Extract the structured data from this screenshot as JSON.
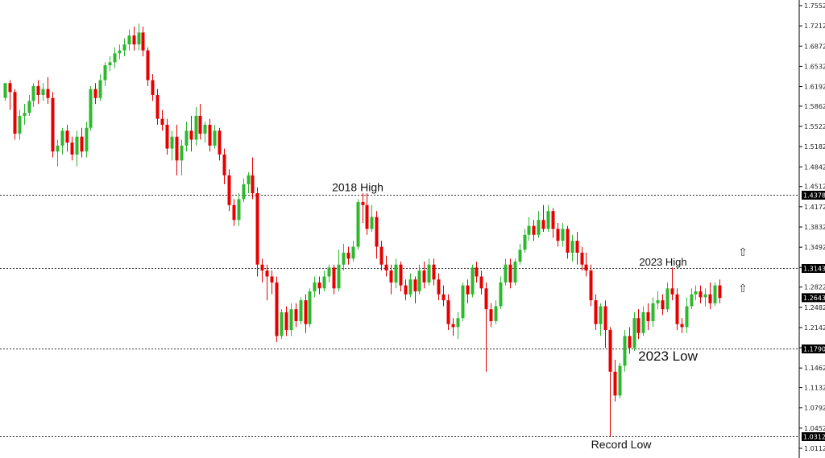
{
  "chart_data": {
    "type": "candlestick",
    "ylim": [
      1.0,
      1.76
    ],
    "y_ticks": [
      "1.75520",
      "1.72120",
      "1.68720",
      "1.65320",
      "1.61920",
      "1.58620",
      "1.55220",
      "1.51820",
      "1.48420",
      "1.45120",
      "1.41720",
      "1.38320",
      "1.34920",
      "1.31520",
      "1.28220",
      "1.24820",
      "1.21420",
      "1.18020",
      "1.14620",
      "1.11320",
      "1.07920",
      "1.04520",
      "1.01120"
    ],
    "levels": [
      {
        "label": "1.43781",
        "value": 1.43781
      },
      {
        "label": "1.31435",
        "value": 1.31435
      },
      {
        "label": "1.17901",
        "value": 1.17901
      },
      {
        "label": "1.03126",
        "value": 1.03126
      }
    ],
    "current_price": {
      "label": "1.26438",
      "value": 1.26438
    },
    "annotations": [
      {
        "text": "2018 High",
        "value": 1.43781
      },
      {
        "text": "2023 High",
        "value": 1.31435
      },
      {
        "text": "2023 Low",
        "value": 1.17901
      },
      {
        "text": "Record Low",
        "value": 1.03126
      }
    ],
    "arrows": [
      "⇧",
      "⇧"
    ],
    "colors": {
      "up": "#2eb82e",
      "down": "#e60000",
      "level_box": "#000000",
      "dotted": "#333333"
    },
    "candles": [
      [
        1.6,
        1.625,
        1.625,
        1.595
      ],
      [
        1.625,
        1.61,
        1.63,
        1.58
      ],
      [
        1.61,
        1.54,
        1.615,
        1.53
      ],
      [
        1.54,
        1.57,
        1.58,
        1.53
      ],
      [
        1.57,
        1.575,
        1.59,
        1.555
      ],
      [
        1.575,
        1.595,
        1.605,
        1.57
      ],
      [
        1.595,
        1.62,
        1.625,
        1.585
      ],
      [
        1.62,
        1.605,
        1.63,
        1.59
      ],
      [
        1.605,
        1.615,
        1.625,
        1.595
      ],
      [
        1.615,
        1.6,
        1.635,
        1.59
      ],
      [
        1.6,
        1.51,
        1.61,
        1.5
      ],
      [
        1.51,
        1.52,
        1.53,
        1.485
      ],
      [
        1.52,
        1.545,
        1.55,
        1.505
      ],
      [
        1.545,
        1.525,
        1.555,
        1.51
      ],
      [
        1.525,
        1.505,
        1.535,
        1.495
      ],
      [
        1.505,
        1.535,
        1.545,
        1.485
      ],
      [
        1.535,
        1.51,
        1.55,
        1.5
      ],
      [
        1.51,
        1.55,
        1.56,
        1.5
      ],
      [
        1.55,
        1.615,
        1.62,
        1.545
      ],
      [
        1.615,
        1.6,
        1.625,
        1.59
      ],
      [
        1.6,
        1.63,
        1.64,
        1.595
      ],
      [
        1.63,
        1.655,
        1.66,
        1.62
      ],
      [
        1.655,
        1.66,
        1.67,
        1.645
      ],
      [
        1.66,
        1.675,
        1.685,
        1.65
      ],
      [
        1.675,
        1.68,
        1.69,
        1.665
      ],
      [
        1.68,
        1.69,
        1.7,
        1.67
      ],
      [
        1.69,
        1.705,
        1.715,
        1.68
      ],
      [
        1.705,
        1.69,
        1.72,
        1.68
      ],
      [
        1.69,
        1.71,
        1.725,
        1.68
      ],
      [
        1.71,
        1.68,
        1.72,
        1.67
      ],
      [
        1.68,
        1.63,
        1.685,
        1.62
      ],
      [
        1.63,
        1.605,
        1.64,
        1.595
      ],
      [
        1.605,
        1.565,
        1.615,
        1.555
      ],
      [
        1.565,
        1.555,
        1.58,
        1.545
      ],
      [
        1.555,
        1.515,
        1.565,
        1.505
      ],
      [
        1.515,
        1.535,
        1.545,
        1.495
      ],
      [
        1.535,
        1.495,
        1.555,
        1.47
      ],
      [
        1.495,
        1.52,
        1.53,
        1.47
      ],
      [
        1.52,
        1.545,
        1.56,
        1.51
      ],
      [
        1.545,
        1.53,
        1.57,
        1.51
      ],
      [
        1.53,
        1.57,
        1.585,
        1.52
      ],
      [
        1.57,
        1.54,
        1.59,
        1.53
      ],
      [
        1.54,
        1.555,
        1.56,
        1.525
      ],
      [
        1.555,
        1.52,
        1.565,
        1.51
      ],
      [
        1.52,
        1.545,
        1.555,
        1.515
      ],
      [
        1.545,
        1.505,
        1.55,
        1.495
      ],
      [
        1.505,
        1.47,
        1.515,
        1.455
      ],
      [
        1.47,
        1.42,
        1.48,
        1.41
      ],
      [
        1.42,
        1.395,
        1.43,
        1.385
      ],
      [
        1.395,
        1.43,
        1.44,
        1.385
      ],
      [
        1.43,
        1.455,
        1.465,
        1.425
      ],
      [
        1.455,
        1.47,
        1.475,
        1.44
      ],
      [
        1.47,
        1.44,
        1.5,
        1.43
      ],
      [
        1.44,
        1.32,
        1.45,
        1.3
      ],
      [
        1.32,
        1.31,
        1.33,
        1.29
      ],
      [
        1.31,
        1.3,
        1.32,
        1.26
      ],
      [
        1.3,
        1.29,
        1.31,
        1.27
      ],
      [
        1.29,
        1.2,
        1.3,
        1.19
      ],
      [
        1.2,
        1.24,
        1.245,
        1.195
      ],
      [
        1.24,
        1.21,
        1.25,
        1.2
      ],
      [
        1.21,
        1.245,
        1.255,
        1.2
      ],
      [
        1.245,
        1.225,
        1.255,
        1.215
      ],
      [
        1.225,
        1.26,
        1.265,
        1.22
      ],
      [
        1.26,
        1.22,
        1.27,
        1.205
      ],
      [
        1.22,
        1.275,
        1.28,
        1.215
      ],
      [
        1.275,
        1.29,
        1.3,
        1.265
      ],
      [
        1.29,
        1.28,
        1.3,
        1.27
      ],
      [
        1.28,
        1.3,
        1.31,
        1.275
      ],
      [
        1.3,
        1.315,
        1.32,
        1.29
      ],
      [
        1.315,
        1.28,
        1.32,
        1.27
      ],
      [
        1.28,
        1.32,
        1.345,
        1.275
      ],
      [
        1.32,
        1.34,
        1.355,
        1.31
      ],
      [
        1.34,
        1.33,
        1.35,
        1.32
      ],
      [
        1.33,
        1.35,
        1.36,
        1.325
      ],
      [
        1.35,
        1.425,
        1.43,
        1.345
      ],
      [
        1.425,
        1.42,
        1.44,
        1.39
      ],
      [
        1.42,
        1.38,
        1.44,
        1.37
      ],
      [
        1.38,
        1.4,
        1.42,
        1.375
      ],
      [
        1.4,
        1.35,
        1.41,
        1.33
      ],
      [
        1.35,
        1.32,
        1.36,
        1.31
      ],
      [
        1.32,
        1.31,
        1.335,
        1.3
      ],
      [
        1.31,
        1.29,
        1.32,
        1.27
      ],
      [
        1.29,
        1.32,
        1.33,
        1.28
      ],
      [
        1.32,
        1.285,
        1.325,
        1.275
      ],
      [
        1.285,
        1.27,
        1.295,
        1.26
      ],
      [
        1.27,
        1.295,
        1.305,
        1.265
      ],
      [
        1.295,
        1.275,
        1.3,
        1.255
      ],
      [
        1.275,
        1.31,
        1.32,
        1.27
      ],
      [
        1.31,
        1.29,
        1.325,
        1.28
      ],
      [
        1.29,
        1.32,
        1.33,
        1.285
      ],
      [
        1.32,
        1.295,
        1.33,
        1.285
      ],
      [
        1.295,
        1.27,
        1.305,
        1.26
      ],
      [
        1.27,
        1.26,
        1.285,
        1.25
      ],
      [
        1.26,
        1.22,
        1.27,
        1.21
      ],
      [
        1.22,
        1.215,
        1.23,
        1.2
      ],
      [
        1.215,
        1.23,
        1.24,
        1.195
      ],
      [
        1.23,
        1.285,
        1.29,
        1.225
      ],
      [
        1.285,
        1.27,
        1.295,
        1.255
      ],
      [
        1.27,
        1.315,
        1.32,
        1.265
      ],
      [
        1.315,
        1.3,
        1.325,
        1.29
      ],
      [
        1.3,
        1.28,
        1.31,
        1.27
      ],
      [
        1.28,
        1.245,
        1.29,
        1.14
      ],
      [
        1.245,
        1.225,
        1.255,
        1.215
      ],
      [
        1.225,
        1.25,
        1.26,
        1.22
      ],
      [
        1.25,
        1.29,
        1.3,
        1.245
      ],
      [
        1.29,
        1.32,
        1.33,
        1.285
      ],
      [
        1.32,
        1.29,
        1.33,
        1.28
      ],
      [
        1.29,
        1.325,
        1.33,
        1.285
      ],
      [
        1.325,
        1.345,
        1.355,
        1.32
      ],
      [
        1.345,
        1.37,
        1.38,
        1.34
      ],
      [
        1.37,
        1.385,
        1.4,
        1.36
      ],
      [
        1.385,
        1.37,
        1.395,
        1.36
      ],
      [
        1.37,
        1.395,
        1.41,
        1.365
      ],
      [
        1.395,
        1.38,
        1.42,
        1.375
      ],
      [
        1.38,
        1.41,
        1.42,
        1.375
      ],
      [
        1.41,
        1.38,
        1.415,
        1.365
      ],
      [
        1.38,
        1.36,
        1.39,
        1.35
      ],
      [
        1.36,
        1.38,
        1.39,
        1.35
      ],
      [
        1.38,
        1.34,
        1.385,
        1.33
      ],
      [
        1.34,
        1.36,
        1.37,
        1.325
      ],
      [
        1.36,
        1.34,
        1.375,
        1.32
      ],
      [
        1.34,
        1.32,
        1.35,
        1.31
      ],
      [
        1.32,
        1.31,
        1.34,
        1.3
      ],
      [
        1.31,
        1.26,
        1.32,
        1.25
      ],
      [
        1.26,
        1.22,
        1.27,
        1.21
      ],
      [
        1.22,
        1.25,
        1.255,
        1.2
      ],
      [
        1.25,
        1.21,
        1.26,
        1.18
      ],
      [
        1.21,
        1.14,
        1.215,
        1.031
      ],
      [
        1.14,
        1.1,
        1.16,
        1.09
      ],
      [
        1.1,
        1.15,
        1.155,
        1.095
      ],
      [
        1.15,
        1.2,
        1.21,
        1.14
      ],
      [
        1.2,
        1.18,
        1.215,
        1.17
      ],
      [
        1.18,
        1.23,
        1.24,
        1.175
      ],
      [
        1.23,
        1.205,
        1.245,
        1.195
      ],
      [
        1.205,
        1.24,
        1.25,
        1.2
      ],
      [
        1.24,
        1.225,
        1.255,
        1.21
      ],
      [
        1.225,
        1.255,
        1.265,
        1.215
      ],
      [
        1.255,
        1.26,
        1.275,
        1.245
      ],
      [
        1.26,
        1.245,
        1.27,
        1.235
      ],
      [
        1.245,
        1.28,
        1.29,
        1.24
      ],
      [
        1.28,
        1.27,
        1.315,
        1.26
      ],
      [
        1.27,
        1.22,
        1.28,
        1.21
      ],
      [
        1.22,
        1.215,
        1.23,
        1.205
      ],
      [
        1.215,
        1.25,
        1.265,
        1.205
      ],
      [
        1.25,
        1.27,
        1.28,
        1.245
      ],
      [
        1.27,
        1.275,
        1.285,
        1.26
      ],
      [
        1.275,
        1.265,
        1.285,
        1.255
      ],
      [
        1.265,
        1.27,
        1.28,
        1.25
      ],
      [
        1.27,
        1.255,
        1.29,
        1.245
      ],
      [
        1.255,
        1.285,
        1.29,
        1.25
      ],
      [
        1.285,
        1.264,
        1.295,
        1.255
      ]
    ]
  }
}
